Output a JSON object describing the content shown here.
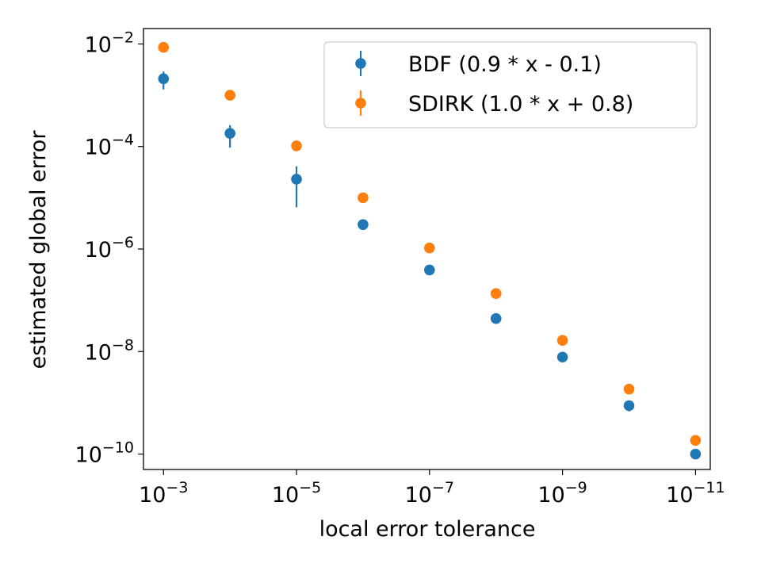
{
  "chart_data": {
    "type": "scatter",
    "xscale": "log",
    "yscale": "log",
    "x_inverted": true,
    "xlabel": "local error tolerance",
    "ylabel": "estimated global error",
    "xlim": [
      0.002,
      6e-12
    ],
    "ylim": [
      5e-11,
      0.02
    ],
    "xticks": [
      {
        "value": 0.001,
        "base": "10",
        "exp": "−3"
      },
      {
        "value": 1e-05,
        "base": "10",
        "exp": "−5"
      },
      {
        "value": 1e-07,
        "base": "10",
        "exp": "−7"
      },
      {
        "value": 1e-09,
        "base": "10",
        "exp": "−9"
      },
      {
        "value": 1e-11,
        "base": "10",
        "exp": "−11"
      }
    ],
    "yticks": [
      {
        "value": 0.01,
        "base": "10",
        "exp": "−2"
      },
      {
        "value": 0.0001,
        "base": "10",
        "exp": "−4"
      },
      {
        "value": 1e-06,
        "base": "10",
        "exp": "−6"
      },
      {
        "value": 1e-08,
        "base": "10",
        "exp": "−8"
      },
      {
        "value": 1e-10,
        "base": "10",
        "exp": "−10"
      }
    ],
    "series": [
      {
        "name": "BDF (0.9 * x - 0.1)",
        "color": "#1f77b4",
        "fit": {
          "slope": 0.9,
          "intercept": -0.1
        },
        "x": [
          0.001,
          0.0001,
          1e-05,
          1e-06,
          1e-07,
          1e-08,
          1e-09,
          1e-10,
          1e-11
        ],
        "y": [
          0.0021,
          0.00018,
          2.3e-05,
          3e-06,
          3.9e-07,
          4.4e-08,
          7.8e-09,
          8.8e-10,
          1e-10
        ],
        "yerr_low": [
          0.0013,
          9.5e-05,
          6.5e-06,
          2.7e-06,
          3.6e-07,
          4.1e-08,
          6.9e-09,
          6.8e-10,
          8.6e-11
        ],
        "yerr_high": [
          0.0029,
          0.00026,
          4.1e-05,
          3.3e-06,
          4.2e-07,
          4.7e-08,
          8.6e-09,
          1.1e-09,
          1.15e-10
        ]
      },
      {
        "name": "SDIRK (1.0 * x + 0.8)",
        "color": "#ff7f0e",
        "fit": {
          "slope": 1.0,
          "intercept": 0.8
        },
        "x": [
          0.001,
          0.0001,
          1e-05,
          1e-06,
          1e-07,
          1e-08,
          1e-09,
          1e-10,
          1e-11
        ],
        "y": [
          0.0086,
          0.001,
          0.000103,
          1e-05,
          1.05e-06,
          1.35e-07,
          1.65e-08,
          1.85e-09,
          1.85e-10
        ],
        "yerr_low": [
          0.0081,
          0.00094,
          9.8e-05,
          9.5e-06,
          9.9e-07,
          1.28e-07,
          1.56e-08,
          1.74e-09,
          1.75e-10
        ],
        "yerr_high": [
          0.0091,
          0.00106,
          0.000108,
          1.05e-05,
          1.11e-06,
          1.42e-07,
          1.74e-08,
          1.96e-09,
          1.95e-10
        ]
      }
    ],
    "legend": {
      "position": "top-right"
    }
  }
}
